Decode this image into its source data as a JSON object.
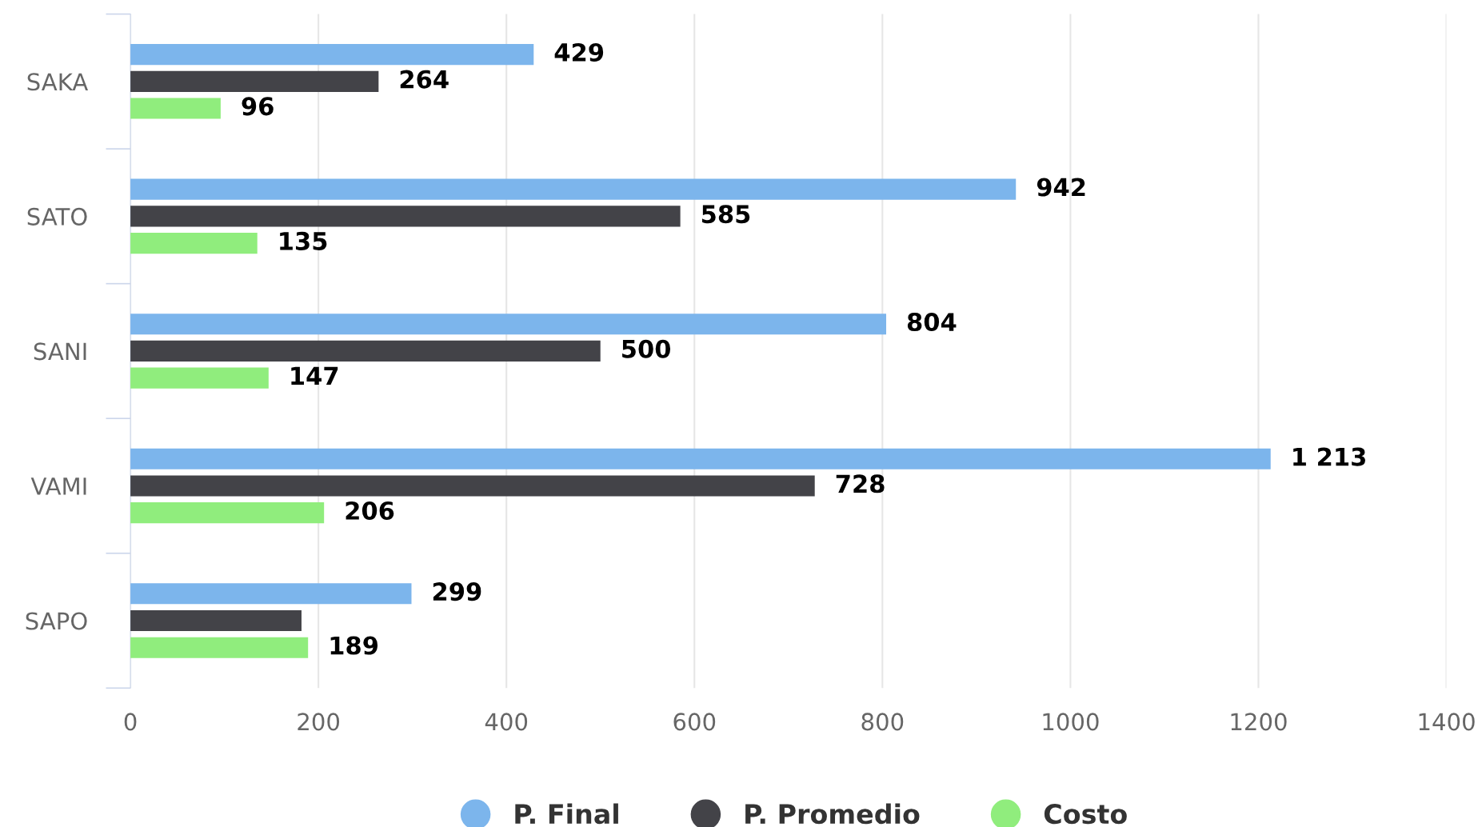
{
  "chart_data": {
    "type": "bar",
    "orientation": "horizontal",
    "categories": [
      "SAKA",
      "SATO",
      "SANI",
      "VAMI",
      "SAPO"
    ],
    "series": [
      {
        "name": "P. Final",
        "color": "#7cb5ec",
        "values": [
          429,
          942,
          804,
          1213,
          299
        ],
        "value_labels": [
          "429",
          "942",
          "804",
          "1 213",
          "299"
        ]
      },
      {
        "name": "P. Promedio",
        "color": "#434348",
        "values": [
          264,
          585,
          500,
          728,
          182
        ],
        "value_labels": [
          "264",
          "585",
          "500",
          "728",
          null
        ]
      },
      {
        "name": "Costo",
        "color": "#90ed7d",
        "values": [
          96,
          135,
          147,
          206,
          189
        ],
        "value_labels": [
          "96",
          "135",
          "147",
          "206",
          "189"
        ]
      }
    ],
    "xlim": [
      0,
      1400
    ],
    "xticks": [
      0,
      200,
      400,
      600,
      800,
      1000,
      1200,
      1400
    ],
    "grid": "x",
    "legend": "bottom",
    "marker": "circle"
  }
}
